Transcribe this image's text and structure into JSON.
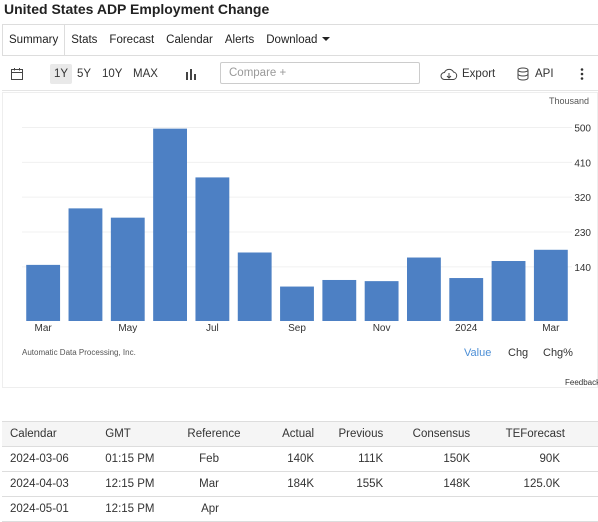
{
  "page_title": "United States ADP Employment Change",
  "tabs": [
    "Summary",
    "Stats",
    "Forecast",
    "Calendar",
    "Alerts",
    "Download"
  ],
  "toolbar": {
    "ranges": [
      "1Y",
      "5Y",
      "10Y",
      "MAX"
    ],
    "selected_range": "1Y",
    "compare_placeholder": "Compare +",
    "export_label": "Export",
    "api_label": "API"
  },
  "chart_data": {
    "type": "bar",
    "unit_label": "Thousand",
    "categories": [
      "Mar 2023",
      "Apr 2023",
      "May 2023",
      "Jun 2023",
      "Jul 2023",
      "Aug 2023",
      "Sep 2023",
      "Oct 2023",
      "Nov 2023",
      "Dec 2023",
      "Jan 2024",
      "Feb 2024",
      "Mar 2024"
    ],
    "values": [
      145,
      291,
      267,
      497,
      371,
      177,
      89,
      106,
      103,
      164,
      111,
      155,
      184
    ],
    "x_tick_labels": [
      "Mar",
      "May",
      "Jul",
      "Sep",
      "Nov",
      "2024",
      "Mar"
    ],
    "y_ticks": [
      140,
      230,
      320,
      410,
      500
    ],
    "ylim": [
      0,
      540
    ],
    "bar_color": "#4d80c4",
    "grid": true,
    "source": "Automatic Data Processing, Inc.",
    "view_options": [
      "Value",
      "Chg",
      "Chg%"
    ],
    "selected_view": "Value"
  },
  "feedback_label": "Feedback",
  "calendar": {
    "headers": [
      "Calendar",
      "GMT",
      "Reference",
      "Actual",
      "Previous",
      "Consensus",
      "TEForecast"
    ],
    "rows": [
      [
        "2024-03-06",
        "01:15 PM",
        "Feb",
        "140K",
        "111K",
        "150K",
        "90K"
      ],
      [
        "2024-04-03",
        "12:15 PM",
        "Mar",
        "184K",
        "155K",
        "148K",
        "125.0K"
      ],
      [
        "2024-05-01",
        "12:15 PM",
        "Apr",
        "",
        "",
        "",
        ""
      ]
    ]
  }
}
